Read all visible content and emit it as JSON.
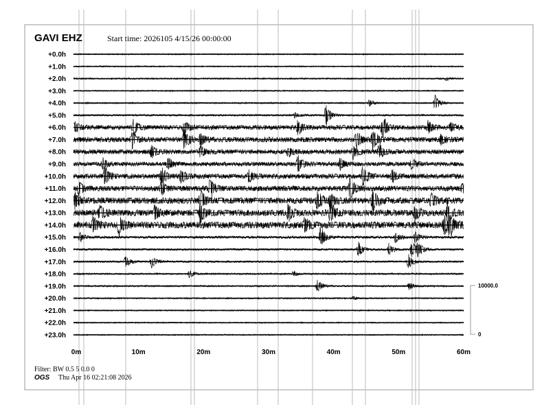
{
  "header": {
    "station": "GAVI EHZ",
    "start_time": "Start time: 2026105  4/15/26 00:00:00"
  },
  "footer": {
    "filter": "Filter: BW 0.5 5 0.0 0",
    "org": "OGS",
    "timestamp": "Thu Apr 16 02:21:08 2026"
  },
  "chart_data": {
    "type": "line",
    "title": "GAVI EHZ",
    "xlim": [
      0,
      60
    ],
    "x_ticks": [
      "0m",
      "10m",
      "20m",
      "30m",
      "40m",
      "50m",
      "60m"
    ],
    "row_labels": [
      "+0.0h",
      "+1.0h",
      "+2.0h",
      "+3.0h",
      "+4.0h",
      "+5.0h",
      "+6.0h",
      "+7.0h",
      "+8.0h",
      "+9.0h",
      "+10.0h",
      "+11.0h",
      "+12.0h",
      "+13.0h",
      "+14.0h",
      "+15.0h",
      "+16.0h",
      "+17.0h",
      "+18.0h",
      "+19.0h",
      "+20.0h",
      "+21.0h",
      "+22.0h",
      "+23.0h"
    ],
    "scale_bar": {
      "top": "10000.0",
      "bottom": "0"
    },
    "noise_level": [
      0.6,
      0.6,
      0.7,
      0.6,
      0.7,
      0.9,
      2.2,
      2.4,
      2.2,
      2.0,
      2.3,
      2.5,
      3.0,
      3.0,
      3.2,
      1.2,
      1.0,
      0.9,
      0.8,
      0.8,
      0.7,
      0.6,
      0.6,
      0.6
    ],
    "events": [
      {
        "hour": 2,
        "minute": 57.3,
        "amp": 2
      },
      {
        "hour": 4,
        "minute": 55.6,
        "amp": 9
      },
      {
        "hour": 4,
        "minute": 45.5,
        "amp": 4
      },
      {
        "hour": 5,
        "minute": 38.8,
        "amp": 12
      },
      {
        "hour": 5,
        "minute": 34.0,
        "amp": 3
      },
      {
        "hour": 6,
        "minute": 0.1,
        "amp": 6
      },
      {
        "hour": 6,
        "minute": 9.2,
        "amp": 8
      },
      {
        "hour": 6,
        "minute": 17.0,
        "amp": 7
      },
      {
        "hour": 6,
        "minute": 34.5,
        "amp": 8
      },
      {
        "hour": 6,
        "minute": 47.5,
        "amp": 14
      },
      {
        "hour": 6,
        "minute": 54.5,
        "amp": 7
      },
      {
        "hour": 6,
        "minute": 58.0,
        "amp": 5
      },
      {
        "hour": 7,
        "minute": 9.0,
        "amp": 10
      },
      {
        "hour": 7,
        "minute": 17.0,
        "amp": 12
      },
      {
        "hour": 7,
        "minute": 19.5,
        "amp": 7
      },
      {
        "hour": 7,
        "minute": 43.5,
        "amp": 10
      },
      {
        "hour": 7,
        "minute": 46.0,
        "amp": 12
      },
      {
        "hour": 7,
        "minute": 56.5,
        "amp": 6
      },
      {
        "hour": 8,
        "minute": 12.0,
        "amp": 7
      },
      {
        "hour": 8,
        "minute": 19.5,
        "amp": 6
      },
      {
        "hour": 8,
        "minute": 33.0,
        "amp": 6
      },
      {
        "hour": 8,
        "minute": 43.0,
        "amp": 8
      },
      {
        "hour": 8,
        "minute": 47.0,
        "amp": 9
      },
      {
        "hour": 9,
        "minute": 4.5,
        "amp": 6
      },
      {
        "hour": 9,
        "minute": 14.5,
        "amp": 7
      },
      {
        "hour": 9,
        "minute": 34.5,
        "amp": 10
      },
      {
        "hour": 9,
        "minute": 41.0,
        "amp": 7
      },
      {
        "hour": 9,
        "minute": 52.0,
        "amp": 6
      },
      {
        "hour": 10,
        "minute": 4.8,
        "amp": 12
      },
      {
        "hour": 10,
        "minute": 13.5,
        "amp": 11
      },
      {
        "hour": 10,
        "minute": 16.5,
        "amp": 8
      },
      {
        "hour": 10,
        "minute": 27.0,
        "amp": 7
      },
      {
        "hour": 10,
        "minute": 44.5,
        "amp": 12
      },
      {
        "hour": 10,
        "minute": 49.0,
        "amp": 7
      },
      {
        "hour": 11,
        "minute": 0.8,
        "amp": 8
      },
      {
        "hour": 11,
        "minute": 13.5,
        "amp": 9
      },
      {
        "hour": 11,
        "minute": 21.0,
        "amp": 12
      },
      {
        "hour": 11,
        "minute": 42.5,
        "amp": 12
      },
      {
        "hour": 11,
        "minute": 59.8,
        "amp": 7
      },
      {
        "hour": 12,
        "minute": 0.2,
        "amp": 8
      },
      {
        "hour": 12,
        "minute": 19.5,
        "amp": 12
      },
      {
        "hour": 12,
        "minute": 37.5,
        "amp": 10
      },
      {
        "hour": 12,
        "minute": 39.5,
        "amp": 9
      },
      {
        "hour": 12,
        "minute": 46.0,
        "amp": 12
      },
      {
        "hour": 12,
        "minute": 55.0,
        "amp": 8
      },
      {
        "hour": 13,
        "minute": 4.0,
        "amp": 9
      },
      {
        "hour": 13,
        "minute": 12.5,
        "amp": 8
      },
      {
        "hour": 13,
        "minute": 19.5,
        "amp": 11
      },
      {
        "hour": 13,
        "minute": 33.0,
        "amp": 10
      },
      {
        "hour": 13,
        "minute": 39.5,
        "amp": 12
      },
      {
        "hour": 13,
        "minute": 52.5,
        "amp": 9
      },
      {
        "hour": 13,
        "minute": 57.5,
        "amp": 10
      },
      {
        "hour": 14,
        "minute": 3.0,
        "amp": 9
      },
      {
        "hour": 14,
        "minute": 7.0,
        "amp": 12
      },
      {
        "hour": 14,
        "minute": 35.5,
        "amp": 8
      },
      {
        "hour": 14,
        "minute": 57.0,
        "amp": 11
      },
      {
        "hour": 14,
        "minute": 57.8,
        "amp": 13
      },
      {
        "hour": 15,
        "minute": 1.0,
        "amp": 5
      },
      {
        "hour": 15,
        "minute": 38.0,
        "amp": 12
      },
      {
        "hour": 15,
        "minute": 49.5,
        "amp": 6
      },
      {
        "hour": 15,
        "minute": 52.5,
        "amp": 6
      },
      {
        "hour": 16,
        "minute": 43.8,
        "amp": 8
      },
      {
        "hour": 16,
        "minute": 48.5,
        "amp": 7
      },
      {
        "hour": 16,
        "minute": 52.0,
        "amp": 10
      },
      {
        "hour": 16,
        "minute": 53.0,
        "amp": 8
      },
      {
        "hour": 17,
        "minute": 8.0,
        "amp": 7
      },
      {
        "hour": 17,
        "minute": 12.0,
        "amp": 7
      },
      {
        "hour": 17,
        "minute": 51.5,
        "amp": 8
      },
      {
        "hour": 18,
        "minute": 17.8,
        "amp": 4
      },
      {
        "hour": 18,
        "minute": 33.8,
        "amp": 3
      },
      {
        "hour": 19,
        "minute": 37.5,
        "amp": 7
      },
      {
        "hour": 19,
        "minute": 51.6,
        "amp": 4
      },
      {
        "hour": 20,
        "minute": 43.0,
        "amp": 2
      }
    ]
  }
}
